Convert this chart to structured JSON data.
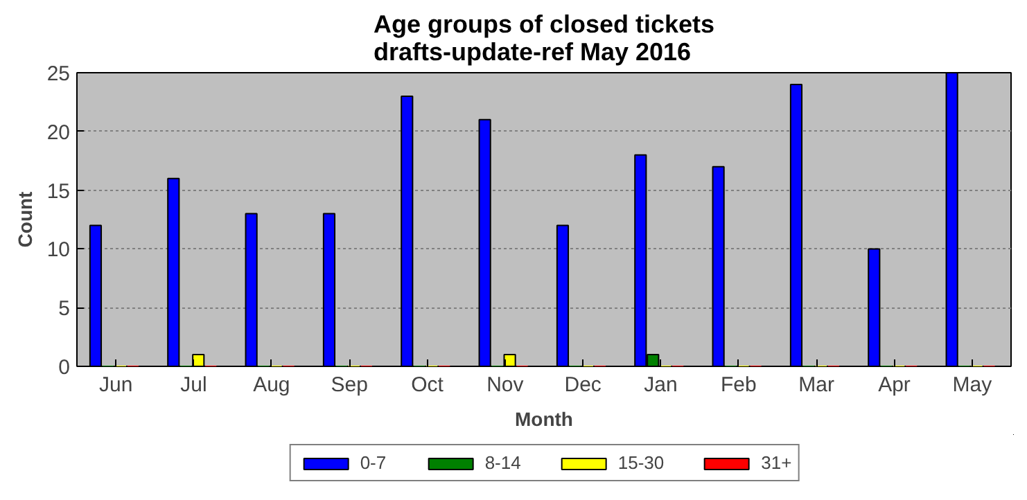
{
  "chart_data": {
    "type": "bar",
    "title": "Age groups of closed tickets\ndrafts-update-ref May 2016",
    "xlabel": "Month",
    "ylabel": "Count",
    "categories": [
      "Jun",
      "Jul",
      "Aug",
      "Sep",
      "Oct",
      "Nov",
      "Dec",
      "Jan",
      "Feb",
      "Mar",
      "Apr",
      "May"
    ],
    "series": [
      {
        "name": "0-7",
        "color": "#0000ff",
        "values": [
          12,
          16,
          13,
          13,
          23,
          21,
          12,
          18,
          17,
          24,
          10,
          25
        ]
      },
      {
        "name": "8-14",
        "color": "#008000",
        "values": [
          0,
          0,
          0,
          0,
          0,
          0,
          0,
          1,
          0,
          0,
          0,
          0
        ]
      },
      {
        "name": "15-30",
        "color": "#ffff00",
        "values": [
          0,
          1,
          0,
          0,
          0,
          1,
          0,
          0,
          0,
          0,
          0,
          0
        ]
      },
      {
        "name": "31+",
        "color": "#ff0000",
        "values": [
          0,
          0,
          0,
          0,
          0,
          0,
          0,
          0,
          0,
          0,
          0,
          0
        ]
      }
    ],
    "ylim": [
      0,
      25
    ],
    "yticks": [
      0,
      5,
      10,
      15,
      20,
      25
    ],
    "grid": "y",
    "legend": "bottom"
  }
}
